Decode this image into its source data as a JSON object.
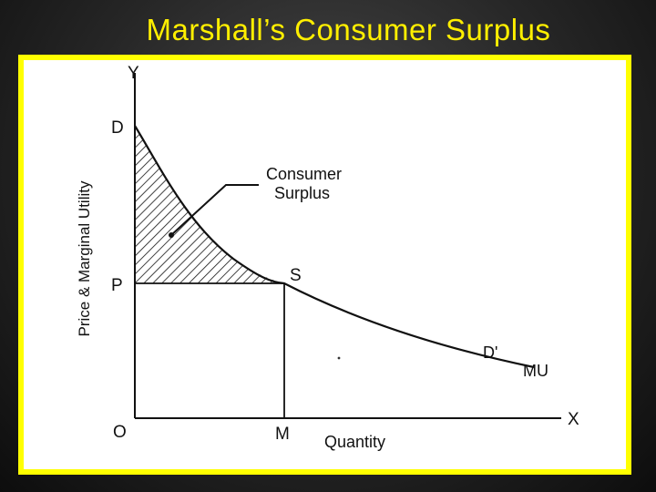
{
  "slide": {
    "title": "Marshall’s Consumer Surplus"
  },
  "diagram": {
    "axis": {
      "y_label": "Y",
      "x_label": "X",
      "origin_label": "O",
      "y_title": "Price & Marginal Utility",
      "x_title": "Quantity"
    },
    "points": {
      "d": "D",
      "p": "P",
      "s": "S",
      "m": "M",
      "d_prime": "D'",
      "mu": "MU"
    },
    "annotation": {
      "line1": "Consumer",
      "line2": "Surplus"
    },
    "colors": {
      "frame": "#ffff00",
      "title": "#ffef00",
      "ink": "#111111"
    }
  }
}
